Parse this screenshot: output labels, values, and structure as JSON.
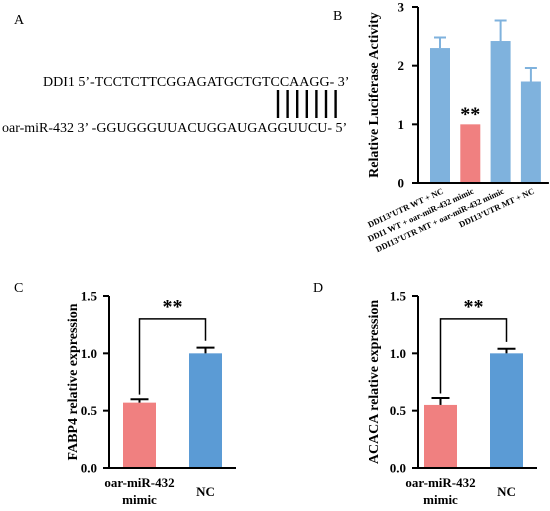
{
  "panels": {
    "A": {
      "label": "A",
      "line1": "DDI1 5’-TCCTCTTCGGAGATGCTGTCCAAGG- 3’",
      "line2": "oar-miR-432 3’ -GGUGGGUUACUGGAUGAGGUUCU- 5’",
      "binding_sites": 7
    },
    "B": {
      "label": "B"
    },
    "C": {
      "label": "C"
    },
    "D": {
      "label": "D"
    }
  },
  "colors": {
    "red": "#f08080",
    "blue": "#5b9bd5",
    "lightblue": "#7fb2dd"
  },
  "chart_data": [
    {
      "id": "B",
      "type": "bar",
      "ylabel": "Relative Luciferase Activity",
      "ylim": [
        0,
        3
      ],
      "yticks": [
        "0",
        "1",
        "2",
        "3"
      ],
      "categories": [
        "DDI13’UTR WT + NC",
        "DDI1 WT + oar-miR-432 mimic",
        "DDI13’UTR MT + oar-miR-432 mimic",
        "DDI13’UTR MT + NC"
      ],
      "values": [
        2.3,
        1.0,
        2.42,
        1.73
      ],
      "errors": [
        0.18,
        0.0,
        0.35,
        0.23
      ],
      "bar_colors": [
        "#7fb2dd",
        "#f08080",
        "#7fb2dd",
        "#7fb2dd"
      ],
      "annotations": [
        {
          "category_index": 1,
          "text": "**"
        }
      ]
    },
    {
      "id": "C",
      "type": "bar",
      "ylabel": "FABP4  relative expression",
      "ylim": [
        0,
        1.5
      ],
      "yticks": [
        "0.0",
        "0.5",
        "1.0",
        "1.5"
      ],
      "categories": [
        "oar-miR-432 mimic",
        "NC"
      ],
      "category_lines": [
        [
          "oar-miR-432",
          "mimic"
        ],
        [
          "NC"
        ]
      ],
      "values": [
        0.57,
        1.0
      ],
      "errors": [
        0.03,
        0.05
      ],
      "bar_colors": [
        "#f08080",
        "#5b9bd5"
      ],
      "significance": "**"
    },
    {
      "id": "D",
      "type": "bar",
      "ylabel": "ACACA relative expression",
      "ylim": [
        0,
        1.5
      ],
      "yticks": [
        "0.0",
        "0.5",
        "1.0",
        "1.5"
      ],
      "categories": [
        "oar-miR-432 mimic",
        "NC"
      ],
      "category_lines": [
        [
          "oar-miR-432",
          "mimic"
        ],
        [
          "NC"
        ]
      ],
      "values": [
        0.55,
        1.0
      ],
      "errors": [
        0.06,
        0.04
      ],
      "bar_colors": [
        "#f08080",
        "#5b9bd5"
      ],
      "significance": "**"
    }
  ]
}
